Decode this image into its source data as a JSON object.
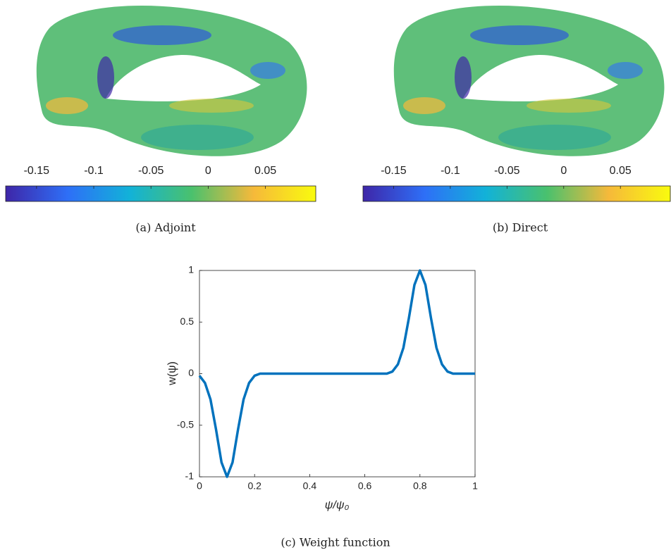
{
  "chart_data": [
    {
      "type": "colorbar",
      "caption": "(a) Adjoint",
      "xlim": [
        -0.177,
        0.094
      ],
      "xticks": [
        -0.15,
        -0.1,
        -0.05,
        0,
        0.05
      ]
    },
    {
      "type": "colorbar",
      "caption": "(b) Direct",
      "xlim": [
        -0.177,
        0.094
      ],
      "xticks": [
        -0.15,
        -0.1,
        -0.05,
        0,
        0.05
      ]
    },
    {
      "type": "line",
      "caption": "(c) Weight function",
      "xlabel": "ψ/ψ₀",
      "ylabel": "w(ψ)",
      "x": [
        0,
        0.02,
        0.04,
        0.06,
        0.08,
        0.1,
        0.12,
        0.14,
        0.16,
        0.18,
        0.2,
        0.22,
        0.24,
        0.26,
        0.28,
        0.3,
        0.32,
        0.34,
        0.36,
        0.38,
        0.4,
        0.42,
        0.44,
        0.46,
        0.48,
        0.5,
        0.52,
        0.54,
        0.56,
        0.58,
        0.6,
        0.62,
        0.64,
        0.66,
        0.68,
        0.7,
        0.72,
        0.74,
        0.76,
        0.78,
        0.8,
        0.82,
        0.84,
        0.86,
        0.88,
        0.9,
        0.92,
        0.94,
        0.96,
        0.98,
        1
      ],
      "series": [
        {
          "color": "#0072bd",
          "values": [
            -0.02,
            -0.09,
            -0.25,
            -0.54,
            -0.86,
            -1,
            -0.86,
            -0.54,
            -0.25,
            -0.09,
            -0.02,
            0,
            0,
            0,
            0,
            0,
            0,
            0,
            0,
            0,
            0,
            0,
            0,
            0,
            0,
            0,
            0,
            0,
            0,
            0,
            0,
            0,
            0,
            0,
            0,
            0.02,
            0.09,
            0.25,
            0.54,
            0.86,
            1,
            0.86,
            0.54,
            0.25,
            0.09,
            0.02,
            0,
            0,
            0,
            0,
            0
          ]
        }
      ],
      "xlim": [
        0,
        1
      ],
      "ylim": [
        -1,
        1
      ],
      "xticks": [
        0,
        0.2,
        0.4,
        0.6,
        0.8,
        1
      ],
      "yticks": [
        -1,
        -0.5,
        0,
        0.5,
        1
      ]
    }
  ]
}
